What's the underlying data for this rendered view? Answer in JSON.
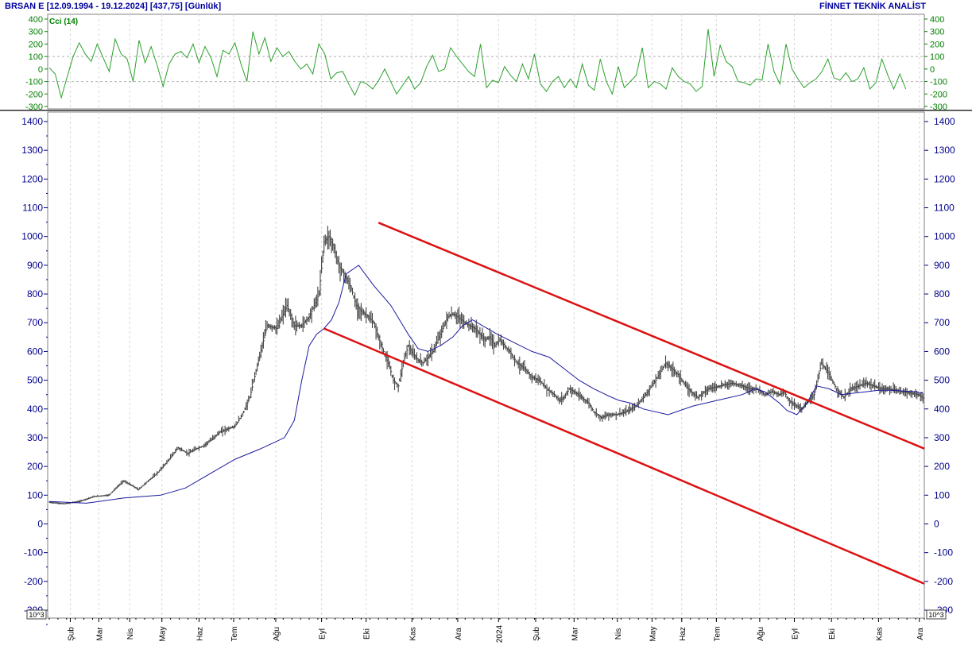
{
  "header": {
    "symbol": "BRSAN E",
    "range": "[12.09.1994 - 19.12.2024]",
    "last": "[437,75]",
    "period": "[Günlük]",
    "provider": "FİNNET TEKNİK ANALİST"
  },
  "colors": {
    "axis_text": "#00008b",
    "cci_text": "#008000",
    "cci_line": "#2ca02c",
    "price_bars": "#444444",
    "ma_line": "#1a1aa0",
    "channel": "#dd1111"
  },
  "chart_data": [
    {
      "type": "line",
      "title": "Cci (14)",
      "ylim": [
        -300,
        400
      ],
      "ytick_labels": [
        "400",
        "300",
        "200",
        "100",
        "0",
        "-100",
        "-200",
        "-300"
      ],
      "reference_lines": [
        100,
        -100
      ],
      "x_indices": [
        0,
        4,
        8,
        12,
        16,
        20,
        24,
        28,
        32,
        36,
        40,
        44,
        48,
        52,
        56,
        60,
        64,
        68,
        72,
        76,
        80,
        84,
        88,
        92,
        96,
        100,
        104,
        108,
        112,
        116,
        120,
        124,
        128,
        132,
        136,
        140,
        144,
        148,
        152,
        156,
        160,
        164,
        168,
        172,
        176,
        180,
        184,
        188,
        192,
        196,
        200,
        204,
        208,
        212,
        216,
        220,
        224,
        228,
        232,
        236,
        240,
        244,
        248,
        252,
        256,
        260,
        264,
        268,
        272,
        276,
        280,
        284,
        288,
        292,
        296,
        300,
        304,
        308,
        312,
        316,
        320,
        324,
        328,
        332,
        336,
        340,
        344,
        348,
        352,
        356,
        360,
        364,
        368,
        372,
        376,
        380,
        384,
        388,
        392,
        396,
        400,
        404,
        408,
        412,
        416,
        420,
        424,
        428,
        432,
        436,
        440,
        444,
        448,
        452,
        456,
        460,
        464,
        468,
        472,
        476,
        480,
        484,
        488,
        492,
        496,
        500,
        504,
        508,
        512,
        516,
        520,
        524,
        528,
        532,
        536,
        540,
        544,
        548,
        552,
        556,
        560,
        564,
        568,
        572,
        576
      ],
      "series": [
        {
          "values": [
            10,
            -40,
            -230,
            -60,
            100,
            210,
            120,
            60,
            200,
            90,
            -20,
            240,
            120,
            80,
            -100,
            230,
            50,
            180,
            30,
            -140,
            40,
            120,
            140,
            90,
            200,
            50,
            180,
            90,
            -60,
            150,
            120,
            210,
            40,
            -100,
            300,
            120,
            250,
            60,
            170,
            100,
            140,
            60,
            0,
            40,
            -40,
            200,
            120,
            -80,
            -30,
            -20,
            -120,
            -210,
            -100,
            -120,
            -160,
            -90,
            0,
            -100,
            -200,
            -130,
            -60,
            -160,
            -110,
            20,
            110,
            -20,
            0,
            170,
            100,
            40,
            -20,
            -60,
            200,
            -150,
            -90,
            -110,
            20,
            -50,
            -100,
            40,
            -80,
            120,
            -120,
            -180,
            -100,
            -60,
            -150,
            -80,
            -150,
            40,
            -130,
            -170,
            80,
            -100,
            -200,
            20,
            -150,
            -100,
            -50,
            170,
            -150,
            -100,
            -120,
            -160,
            10,
            -60,
            -100,
            -120,
            -180,
            -140,
            320,
            -60,
            190,
            60,
            20,
            -100,
            -110,
            -130,
            -80,
            -90,
            200,
            -20,
            -120,
            200,
            0,
            -80,
            -150,
            -110,
            -80,
            -20,
            80,
            -70,
            -90,
            -30,
            -100,
            -80,
            10,
            -160,
            -110,
            80,
            -50,
            -160,
            -40,
            -160
          ]
        }
      ]
    },
    {
      "type": "bar",
      "subtype": "ohlc",
      "ylim": [
        -300,
        1450
      ],
      "ytick_labels": [
        "1400",
        "1300",
        "1200",
        "1100",
        "1000",
        "900",
        "800",
        "700",
        "600",
        "500",
        "400",
        "300",
        "200",
        "100",
        "0",
        "-100",
        "-200",
        "-300"
      ],
      "x_scale_label": "10^3",
      "x_labels": [
        "Şub",
        "Mar",
        "Nis",
        "May",
        "Haz",
        "Tem",
        "Ağu",
        "Eyl",
        "Eki",
        "Kas",
        "Ara",
        "2024",
        "Şub",
        "Mar",
        "Nis",
        "May",
        "Haz",
        "Tem",
        "Ağu",
        "Eyl",
        "Eki",
        "Kas",
        "Ara"
      ],
      "x_label_positions": [
        17,
        40,
        65,
        91,
        121,
        149,
        183,
        220,
        256,
        293,
        330,
        363,
        393,
        424,
        459,
        487,
        511,
        539,
        574,
        602,
        632,
        670,
        703
      ],
      "x_count": 707,
      "close": {
        "x": [
          0,
          12,
          24,
          36,
          48,
          60,
          72,
          80,
          88,
          96,
          104,
          112,
          118,
          124,
          130,
          138,
          144,
          150,
          156,
          162,
          168,
          176,
          184,
          192,
          198,
          204,
          210,
          214,
          218,
          222,
          226,
          230,
          234,
          238,
          244,
          248,
          252,
          258,
          262,
          266,
          270,
          274,
          278,
          282,
          286,
          290,
          294,
          298,
          302,
          306,
          310,
          314,
          318,
          322,
          326,
          330,
          336,
          340,
          344,
          348,
          352,
          356,
          360,
          364,
          368,
          372,
          378,
          384,
          390,
          396,
          402,
          408,
          412,
          416,
          420,
          424,
          430,
          436,
          440,
          446,
          452,
          458,
          466,
          474,
          482,
          490,
          498,
          508,
          516,
          524,
          532,
          542,
          552,
          560,
          566,
          572,
          578,
          584,
          590,
          594,
          596,
          600,
          604,
          608,
          612,
          618,
          624,
          630,
          636,
          642,
          648,
          654,
          660,
          666,
          672,
          678,
          684,
          690,
          696,
          702,
          706
        ],
        "y": [
          75,
          70,
          78,
          95,
          100,
          150,
          120,
          150,
          180,
          220,
          265,
          245,
          260,
          270,
          290,
          320,
          330,
          340,
          380,
          440,
          550,
          690,
          680,
          760,
          690,
          690,
          720,
          760,
          800,
          980,
          1000,
          960,
          900,
          870,
          820,
          760,
          740,
          720,
          700,
          650,
          600,
          560,
          500,
          480,
          560,
          620,
          590,
          570,
          560,
          580,
          600,
          640,
          680,
          720,
          730,
          720,
          700,
          690,
          680,
          660,
          640,
          650,
          620,
          640,
          620,
          600,
          560,
          540,
          510,
          500,
          470,
          450,
          430,
          440,
          470,
          460,
          440,
          420,
          390,
          370,
          380,
          380,
          390,
          410,
          450,
          500,
          560,
          520,
          470,
          440,
          470,
          480,
          490,
          480,
          470,
          470,
          450,
          460,
          450,
          460,
          440,
          420,
          410,
          400,
          420,
          450,
          560,
          520,
          470,
          440,
          470,
          480,
          490,
          480,
          470,
          470,
          465,
          460,
          455,
          450,
          437.75
        ]
      },
      "moving_average": {
        "x": [
          0,
          30,
          60,
          90,
          110,
          130,
          150,
          170,
          180,
          190,
          198,
          204,
          210,
          216,
          222,
          228,
          234,
          240,
          250,
          262,
          276,
          290,
          298,
          306,
          316,
          326,
          334,
          342,
          350,
          362,
          376,
          390,
          404,
          416,
          428,
          440,
          452,
          460,
          470,
          480,
          500,
          520,
          540,
          560,
          570,
          578,
          584,
          590,
          596,
          604,
          612,
          620,
          630,
          640,
          650,
          660,
          670,
          680,
          690,
          700,
          706
        ],
        "y": [
          78,
          72,
          90,
          100,
          125,
          175,
          225,
          260,
          280,
          300,
          360,
          500,
          620,
          660,
          680,
          710,
          770,
          870,
          900,
          830,
          760,
          660,
          610,
          600,
          620,
          650,
          690,
          710,
          690,
          660,
          630,
          600,
          580,
          540,
          500,
          470,
          445,
          430,
          420,
          400,
          380,
          410,
          430,
          450,
          470,
          460,
          440,
          420,
          395,
          380,
          420,
          480,
          470,
          450,
          455,
          460,
          465,
          465,
          462,
          460,
          455
        ]
      },
      "channel": {
        "upper": {
          "x": [
            266,
            707
          ],
          "y": [
            1048,
            262
          ]
        },
        "lower": {
          "x": [
            222,
            707
          ],
          "y": [
            680,
            -208
          ]
        }
      }
    }
  ]
}
